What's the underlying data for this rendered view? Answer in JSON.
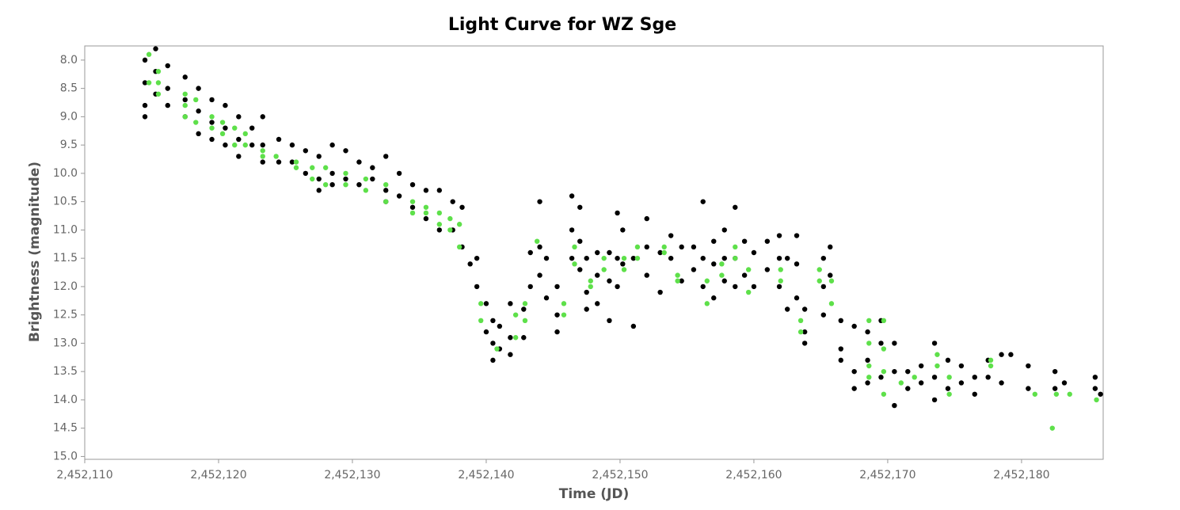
{
  "chart_data": {
    "type": "scatter",
    "title": "Light Curve for WZ Sge",
    "xlabel": "Time (JD)",
    "ylabel": "Brightness (magnitude)",
    "xlim": [
      2452110,
      2452186.1
    ],
    "ylim": [
      15.05,
      7.75
    ],
    "xticks": [
      {
        "value": 2452110,
        "label": "2,452,110"
      },
      {
        "value": 2452120,
        "label": "2,452,120"
      },
      {
        "value": 2452130,
        "label": "2,452,130"
      },
      {
        "value": 2452140,
        "label": "2,452,140"
      },
      {
        "value": 2452150,
        "label": "2,452,150"
      },
      {
        "value": 2452160,
        "label": "2,452,160"
      },
      {
        "value": 2452170,
        "label": "2,452,170"
      },
      {
        "value": 2452180,
        "label": "2,452,180"
      }
    ],
    "yticks": [
      {
        "value": 8,
        "label": "8.0"
      },
      8.5,
      {
        "value": 9,
        "label": "9.0"
      },
      9.5,
      {
        "value": 10,
        "label": "10.0"
      },
      10.5,
      {
        "value": 11,
        "label": "11.0"
      },
      11.5,
      {
        "value": 12,
        "label": "12.0"
      },
      12.5,
      {
        "value": 13,
        "label": "13.0"
      },
      13.5,
      {
        "value": 14,
        "label": "14.0"
      },
      14.5,
      {
        "value": 15,
        "label": "15.0"
      }
    ],
    "grid": false,
    "series": [
      {
        "color": "#000000",
        "x": [
          2452114.5,
          2452114.5,
          2452114.5,
          2452114.5,
          2452115.3,
          2452115.3,
          2452115.3,
          2452116.2,
          2452116.2,
          2452116.2,
          2452117.5,
          2452117.5,
          2452117.5,
          2452118.5,
          2452118.5,
          2452118.5,
          2452119.5,
          2452119.5,
          2452119.5,
          2452120.5,
          2452120.5,
          2452120.5,
          2452121.5,
          2452121.5,
          2452121.5,
          2452122.5,
          2452122.5,
          2452123.3,
          2452123.3,
          2452123.3,
          2452124.5,
          2452124.5,
          2452125.5,
          2452125.5,
          2452126.5,
          2452126.5,
          2452127.5,
          2452127.5,
          2452127.5,
          2452128.5,
          2452128.5,
          2452128.5,
          2452129.5,
          2452129.5,
          2452130.5,
          2452130.5,
          2452131.5,
          2452131.5,
          2452132.5,
          2452132.5,
          2452132.5,
          2452133.5,
          2452133.5,
          2452134.5,
          2452134.5,
          2452135.5,
          2452135.5,
          2452136.5,
          2452136.5,
          2452137.5,
          2452137.5,
          2452138.2,
          2452138.2,
          2452138.8,
          2452139.3,
          2452139.3,
          2452140,
          2452140,
          2452140.5,
          2452140.5,
          2452140.5,
          2452141,
          2452141,
          2452141.8,
          2452141.8,
          2452141.8,
          2452142.8,
          2452142.8,
          2452143.3,
          2452143.3,
          2452144,
          2452144,
          2452144,
          2452144.5,
          2452144.5,
          2452145.3,
          2452145.3,
          2452145.3,
          2452146.4,
          2452146.4,
          2452146.4,
          2452147,
          2452147,
          2452147,
          2452147.5,
          2452147.5,
          2452147.5,
          2452148.3,
          2452148.3,
          2452148.3,
          2452149.2,
          2452149.2,
          2452149.2,
          2452149.8,
          2452149.8,
          2452149.8,
          2452150.2,
          2452150.2,
          2452151,
          2452151,
          2452152,
          2452152,
          2452152,
          2452153,
          2452153,
          2452153.8,
          2452153.8,
          2452154.6,
          2452154.6,
          2452155.5,
          2452155.5,
          2452156.2,
          2452156.2,
          2452156.2,
          2452157,
          2452157,
          2452157,
          2452157.8,
          2452157.8,
          2452157.8,
          2452158.6,
          2452158.6,
          2452158.6,
          2452159.3,
          2452159.3,
          2452160,
          2452160,
          2452161,
          2452161,
          2452161.9,
          2452161.9,
          2452161.9,
          2452162.5,
          2452162.5,
          2452163.2,
          2452163.2,
          2452163.2,
          2452163.8,
          2452163.8,
          2452163.8,
          2452165.2,
          2452165.2,
          2452165.2,
          2452165.7,
          2452165.7,
          2452166.5,
          2452166.5,
          2452166.5,
          2452167.5,
          2452167.5,
          2452167.5,
          2452168.5,
          2452168.5,
          2452168.5,
          2452169.5,
          2452169.5,
          2452169.5,
          2452170.5,
          2452170.5,
          2452170.5,
          2452171.5,
          2452171.5,
          2452172.5,
          2452172.5,
          2452173.5,
          2452173.5,
          2452173.5,
          2452174.5,
          2452174.5,
          2452175.5,
          2452175.5,
          2452176.5,
          2452176.5,
          2452177.5,
          2452177.5,
          2452178.5,
          2452178.5,
          2452179.2,
          2452180.5,
          2452180.5,
          2452182.5,
          2452182.5,
          2452183.2,
          2452185.5,
          2452185.5,
          2452185.9
        ],
        "values": [
          8.0,
          8.4,
          8.8,
          9.0,
          7.8,
          8.2,
          8.6,
          8.1,
          8.5,
          8.8,
          8.3,
          8.7,
          9.0,
          8.5,
          8.9,
          9.3,
          8.7,
          9.1,
          9.4,
          8.8,
          9.2,
          9.5,
          9.0,
          9.4,
          9.7,
          9.2,
          9.5,
          9.0,
          9.5,
          9.8,
          9.4,
          9.8,
          9.5,
          9.8,
          9.6,
          10.0,
          9.7,
          10.1,
          10.3,
          9.5,
          10.0,
          10.2,
          9.6,
          10.1,
          9.8,
          10.2,
          9.9,
          10.1,
          9.7,
          10.3,
          10.5,
          10.0,
          10.4,
          10.2,
          10.6,
          10.3,
          10.8,
          10.3,
          11.0,
          10.5,
          11.0,
          10.6,
          11.3,
          11.6,
          11.5,
          12.0,
          12.3,
          12.8,
          12.6,
          13.0,
          13.3,
          12.7,
          13.1,
          12.3,
          12.9,
          13.2,
          12.4,
          12.9,
          11.4,
          12.0,
          10.5,
          11.3,
          11.8,
          11.5,
          12.2,
          12.0,
          12.5,
          12.8,
          10.4,
          11.0,
          11.5,
          10.6,
          11.2,
          11.7,
          11.5,
          12.1,
          12.4,
          11.4,
          11.8,
          12.3,
          11.4,
          11.9,
          12.6,
          10.7,
          11.5,
          12.0,
          11.0,
          11.6,
          11.5,
          12.7,
          10.8,
          11.3,
          11.8,
          11.4,
          12.1,
          11.1,
          11.5,
          11.3,
          11.9,
          11.3,
          11.7,
          10.5,
          11.5,
          12.0,
          11.2,
          11.6,
          12.2,
          11.0,
          11.5,
          11.9,
          10.6,
          11.5,
          12.0,
          11.2,
          11.8,
          11.4,
          12.0,
          11.2,
          11.7,
          11.1,
          11.5,
          12.0,
          11.5,
          12.4,
          11.1,
          11.6,
          12.2,
          12.4,
          12.8,
          13.0,
          11.5,
          12.0,
          12.5,
          11.3,
          11.8,
          12.6,
          13.1,
          13.3,
          12.7,
          13.5,
          13.8,
          12.8,
          13.3,
          13.7,
          12.6,
          13.0,
          13.6,
          13.0,
          13.5,
          14.1,
          13.5,
          13.8,
          13.4,
          13.7,
          13.0,
          13.6,
          14.0,
          13.3,
          13.8,
          13.4,
          13.7,
          13.6,
          13.9,
          13.3,
          13.6,
          13.2,
          13.7,
          13.2,
          13.4,
          13.8,
          13.5,
          13.8,
          13.7,
          13.6,
          13.8,
          13.9
        ]
      },
      {
        "color": "#5ee04a",
        "x": [
          2452114.8,
          2452114.8,
          2452115.5,
          2452115.5,
          2452115.5,
          2452117.5,
          2452117.5,
          2452117.5,
          2452118.3,
          2452118.3,
          2452119.5,
          2452119.5,
          2452120.3,
          2452120.3,
          2452121.2,
          2452121.2,
          2452122,
          2452122,
          2452123.3,
          2452123.3,
          2452124.3,
          2452125.8,
          2452125.8,
          2452127,
          2452127,
          2452128,
          2452128,
          2452129.5,
          2452129.5,
          2452131,
          2452131,
          2452132.5,
          2452132.5,
          2452134.5,
          2452134.5,
          2452135.5,
          2452135.5,
          2452136.5,
          2452136.5,
          2452137.3,
          2452137.3,
          2452138,
          2452138,
          2452139.6,
          2452139.6,
          2452140.8,
          2452142.2,
          2452142.2,
          2452142.9,
          2452142.9,
          2452143.8,
          2452145.8,
          2452145.8,
          2452146.6,
          2452146.6,
          2452147.8,
          2452147.8,
          2452148.8,
          2452148.8,
          2452150.3,
          2452150.3,
          2452151.3,
          2452151.3,
          2452153.3,
          2452153.3,
          2452154.3,
          2452154.3,
          2452156.5,
          2452156.5,
          2452157.6,
          2452157.6,
          2452158.6,
          2452158.6,
          2452159.6,
          2452159.6,
          2452162,
          2452162,
          2452163.5,
          2452163.5,
          2452164.9,
          2452164.9,
          2452165.8,
          2452165.8,
          2452168.6,
          2452168.6,
          2452168.6,
          2452168.6,
          2452169.7,
          2452169.7,
          2452169.7,
          2452169.7,
          2452171,
          2452172,
          2452173.7,
          2452173.7,
          2452174.6,
          2452174.6,
          2452177.7,
          2452177.7,
          2452181,
          2452182.3,
          2452182.6,
          2452183.6,
          2452185.6
        ],
        "values": [
          7.9,
          8.4,
          8.2,
          8.4,
          8.6,
          8.6,
          8.8,
          9.0,
          8.7,
          9.1,
          9.0,
          9.2,
          9.1,
          9.3,
          9.2,
          9.5,
          9.3,
          9.5,
          9.6,
          9.7,
          9.7,
          9.8,
          9.9,
          9.9,
          10.1,
          9.9,
          10.2,
          10.0,
          10.2,
          10.1,
          10.3,
          10.2,
          10.5,
          10.5,
          10.7,
          10.6,
          10.7,
          10.7,
          10.9,
          10.8,
          11.0,
          10.9,
          11.3,
          12.3,
          12.6,
          13.1,
          12.5,
          12.9,
          12.3,
          12.6,
          11.2,
          12.3,
          12.5,
          11.3,
          11.6,
          11.9,
          12.0,
          11.5,
          11.7,
          11.5,
          11.7,
          11.3,
          11.5,
          11.3,
          11.4,
          11.8,
          11.9,
          11.9,
          12.3,
          11.6,
          11.8,
          11.3,
          11.5,
          11.7,
          12.1,
          11.7,
          11.9,
          12.6,
          12.8,
          11.7,
          11.9,
          11.9,
          12.3,
          12.6,
          13.0,
          13.4,
          13.6,
          12.6,
          13.1,
          13.5,
          13.9,
          13.7,
          13.6,
          13.2,
          13.4,
          13.6,
          13.9,
          13.3,
          13.4,
          13.9,
          14.5,
          13.9,
          13.9,
          14.0
        ]
      }
    ]
  }
}
